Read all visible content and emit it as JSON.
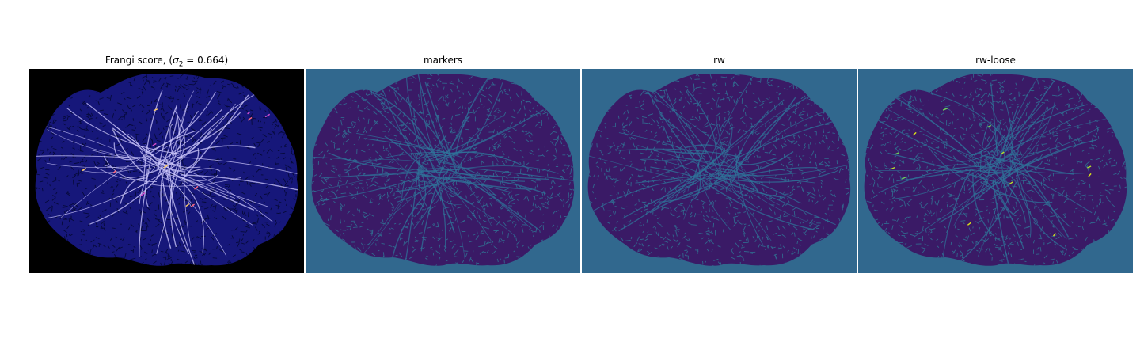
{
  "panels": [
    {
      "id": "frangi",
      "title_prefix": "Frangi score, (",
      "title_var": "σ",
      "title_sub": "2",
      "title_suffix": " = 0.664)",
      "background": "#000000",
      "blob": "#16177a",
      "texture": "#060a3a",
      "vessel": "#cfc9ff",
      "accent": [
        "#d94fd0",
        "#ffcc66",
        "#ff6680"
      ]
    },
    {
      "id": "markers",
      "title": "markers",
      "background": "#31688e",
      "blob": "#3a1a66",
      "texture": "#31688e",
      "vessel": "#2f7399",
      "accent": []
    },
    {
      "id": "rw",
      "title": "rw",
      "background": "#31688e",
      "blob": "#3a1a66",
      "texture": "#31688e",
      "vessel": "#2f7399",
      "accent": []
    },
    {
      "id": "rw-loose",
      "title": "rw-loose",
      "background": "#31688e",
      "blob": "#3a1a66",
      "texture": "#31688e",
      "vessel": "#2f7399",
      "accent": [
        "#d8e219",
        "#b5de2b",
        "#6ece58"
      ]
    }
  ]
}
